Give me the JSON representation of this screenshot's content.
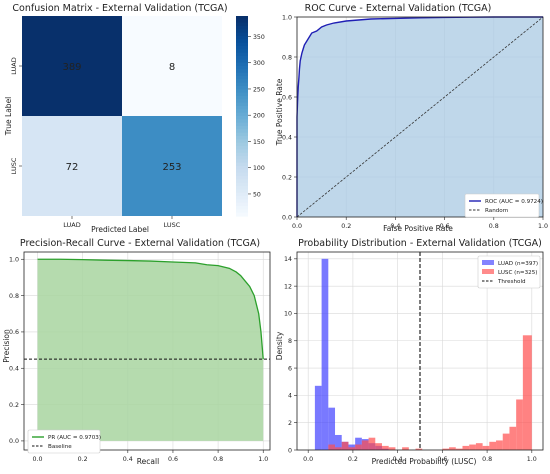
{
  "chart_data": [
    {
      "type": "heatmap",
      "title": "Confusion Matrix - External Validation (TCGA)",
      "xlabel": "Predicted Label",
      "ylabel": "True Label",
      "x_categories": [
        "LUAD",
        "LUSC"
      ],
      "y_categories": [
        "LUAD",
        "LUSC"
      ],
      "values": [
        [
          389,
          8
        ],
        [
          72,
          253
        ]
      ],
      "colorbar_ticks": [
        50,
        100,
        150,
        200,
        250,
        300,
        350
      ],
      "colorbar_range": [
        8,
        389
      ],
      "colormap": [
        "#f7fbff",
        "#08306b"
      ]
    },
    {
      "type": "line",
      "title": "ROC Curve - External Validation (TCGA)",
      "xlabel": "False Positive Rate",
      "ylabel": "True Positive Rate",
      "xlim": [
        0,
        1
      ],
      "ylim": [
        0,
        1
      ],
      "xticks": [
        "0.0",
        "0.2",
        "0.4",
        "0.6",
        "0.8",
        "1.0"
      ],
      "yticks": [
        "0.0",
        "0.2",
        "0.4",
        "0.6",
        "0.8",
        "1.0"
      ],
      "grid": true,
      "legend_position": "lower-right",
      "series": [
        {
          "name": "ROC (AUC = 0.9724)",
          "color": "#1f1fb4",
          "fill": "#a9c9e3",
          "x": [
            0,
            0,
            0.003,
            0.005,
            0.008,
            0.01,
            0.013,
            0.02,
            0.025,
            0.03,
            0.04,
            0.05,
            0.06,
            0.08,
            0.1,
            0.12,
            0.15,
            0.2,
            0.25,
            0.3,
            0.4,
            0.5,
            0.6,
            0.7,
            0.8,
            0.9,
            1.0
          ],
          "y": [
            0,
            0.5,
            0.6,
            0.65,
            0.7,
            0.74,
            0.78,
            0.82,
            0.84,
            0.86,
            0.88,
            0.9,
            0.92,
            0.93,
            0.95,
            0.96,
            0.97,
            0.98,
            0.985,
            0.99,
            0.993,
            0.996,
            0.998,
            0.999,
            1.0,
            1.0,
            1.0
          ]
        },
        {
          "name": "Random",
          "color": "#333333",
          "dash": true,
          "x": [
            0,
            1
          ],
          "y": [
            0,
            1
          ]
        }
      ]
    },
    {
      "type": "area",
      "title": "Precision-Recall Curve - External Validation (TCGA)",
      "xlabel": "Recall",
      "ylabel": "Precision",
      "xlim": [
        0,
        1
      ],
      "ylim": [
        0,
        1
      ],
      "xticks": [
        "0.0",
        "0.2",
        "0.4",
        "0.6",
        "0.8",
        "1.0"
      ],
      "yticks": [
        "0.0",
        "0.2",
        "0.4",
        "0.6",
        "0.8",
        "1.0"
      ],
      "grid": true,
      "legend_position": "lower-left",
      "series": [
        {
          "name": "PR (AUC = 0.9703)",
          "color": "#2ca02c",
          "fill": "#a8d5a0",
          "x": [
            0,
            0.1,
            0.2,
            0.3,
            0.4,
            0.5,
            0.6,
            0.7,
            0.75,
            0.8,
            0.85,
            0.88,
            0.9,
            0.92,
            0.94,
            0.96,
            0.97,
            0.98,
            0.99,
            1.0
          ],
          "y": [
            1.0,
            1.0,
            0.998,
            0.995,
            0.993,
            0.99,
            0.985,
            0.98,
            0.97,
            0.965,
            0.95,
            0.93,
            0.91,
            0.88,
            0.85,
            0.8,
            0.75,
            0.7,
            0.6,
            0.45
          ]
        },
        {
          "name": "Baseline",
          "color": "#111111",
          "dash": true,
          "x": [
            0,
            1
          ],
          "y": [
            0.45,
            0.45
          ]
        }
      ]
    },
    {
      "type": "bar",
      "title": "Probability Distribution - External Validation (TCGA)",
      "xlabel": "Predicted Probability (LUSC)",
      "ylabel": "Density",
      "xlim": [
        0,
        1
      ],
      "ylim": [
        0,
        14.5
      ],
      "xticks": [
        "0.0",
        "0.2",
        "0.4",
        "0.6",
        "0.8",
        "1.0"
      ],
      "yticks": [
        "0",
        "2",
        "4",
        "6",
        "8",
        "10",
        "12",
        "14"
      ],
      "grid": true,
      "legend_position": "top-right",
      "bin_edges": [
        0.0,
        0.03,
        0.06,
        0.09,
        0.12,
        0.15,
        0.18,
        0.21,
        0.24,
        0.27,
        0.3,
        0.33,
        0.36,
        0.39,
        0.42,
        0.45,
        0.48,
        0.51,
        0.54,
        0.57,
        0.6,
        0.63,
        0.66,
        0.69,
        0.72,
        0.75,
        0.78,
        0.81,
        0.84,
        0.87,
        0.9,
        0.93,
        0.96,
        1.0
      ],
      "series": [
        {
          "name": "LUAD (n=397)",
          "color": "#4040ff",
          "values": [
            0,
            4.7,
            14.0,
            3.1,
            1.1,
            0.6,
            0.4,
            0.9,
            0.8,
            0.5,
            0.3,
            0.1,
            0.0,
            0.0,
            0.0,
            0.0,
            0.0,
            0.0,
            0.0,
            0.0,
            0.0,
            0.0,
            0.0,
            0.0,
            0.0,
            0.0,
            0.0,
            0.0,
            0.0,
            0.0,
            0.0,
            0.0,
            0.0
          ]
        },
        {
          "name": "LUSC (n=325)",
          "color": "#ff4d4d",
          "values": [
            0,
            0.0,
            0.0,
            0.4,
            0.2,
            0.6,
            0.2,
            0.4,
            0.7,
            0.9,
            0.5,
            0.3,
            0.2,
            0.0,
            0.2,
            0.0,
            0.1,
            0.0,
            0.0,
            0.0,
            0.1,
            0.2,
            0.1,
            0.3,
            0.4,
            0.5,
            0.3,
            0.6,
            0.7,
            1.2,
            1.7,
            3.7,
            8.4
          ]
        }
      ],
      "threshold": {
        "name": "Threshold",
        "x": 0.5,
        "color": "#111111"
      }
    }
  ]
}
